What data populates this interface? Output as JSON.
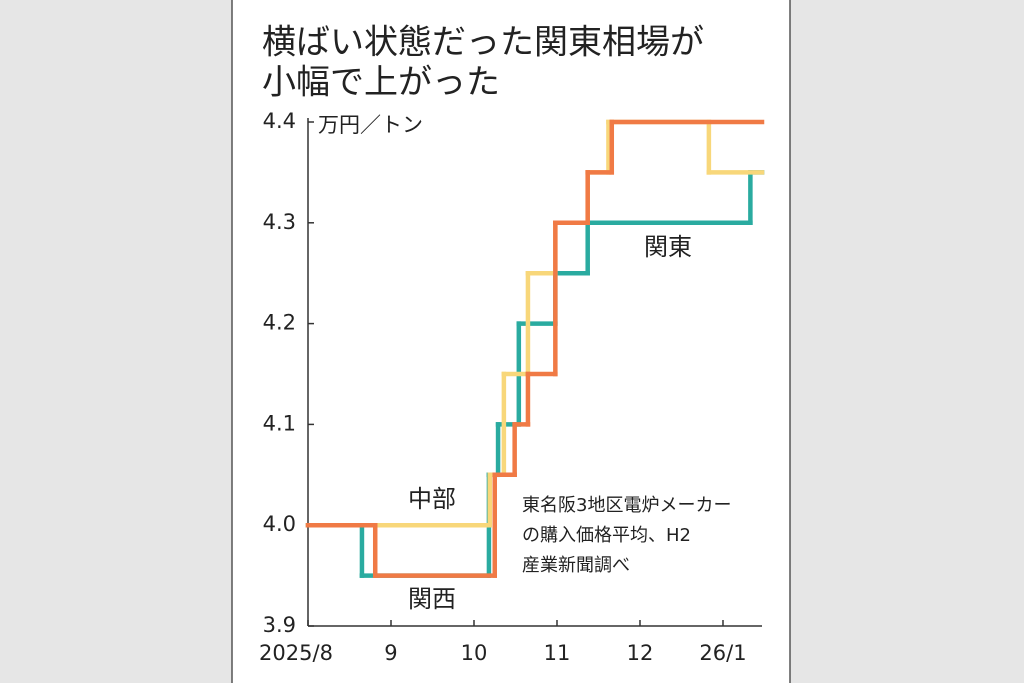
{
  "chart_data": {
    "type": "step",
    "title": [
      "横ばい状態だった関東相場が",
      "小幅で上がった"
    ],
    "y_label": "万円／トン",
    "note": [
      "東名阪3地区電炉メーカー",
      "の購入価格平均、H2",
      "産業新聞調べ"
    ],
    "xlim": [
      0,
      5.47
    ],
    "xticks": [
      {
        "value": 0,
        "label": "2025/8"
      },
      {
        "value": 1,
        "label": "9"
      },
      {
        "value": 2,
        "label": "10"
      },
      {
        "value": 3,
        "label": "11"
      },
      {
        "value": 4,
        "label": "12"
      },
      {
        "value": 5,
        "label": "26/1"
      }
    ],
    "ylim": [
      3.9,
      4.4
    ],
    "yticks": [
      3.9,
      {
        "value": 4,
        "label": "4.0"
      },
      4.1,
      4.2,
      4.3,
      4.4
    ],
    "series": [
      {
        "name": "関東",
        "color": "#2aaba0",
        "x": [
          0,
          0.65,
          2.18,
          2.29,
          2.54,
          2.98,
          3.37,
          5.33
        ],
        "values": [
          4,
          3.95,
          4.05,
          4.1,
          4.2,
          4.25,
          4.3,
          4.35
        ]
      },
      {
        "name": "中部",
        "color": "#f8d77a",
        "x": [
          0,
          2.19,
          2.36,
          2.65,
          2.98,
          3.37,
          3.62,
          4.83
        ],
        "values": [
          4,
          4.05,
          4.15,
          4.25,
          4.3,
          4.35,
          4.4,
          4.35
        ]
      },
      {
        "name": "関西",
        "color": "#f07a45",
        "x": [
          0,
          0.81,
          2.25,
          2.49,
          2.65,
          2.98,
          3.37,
          3.66
        ],
        "values": [
          4,
          3.95,
          4.05,
          4.1,
          4.15,
          4.3,
          4.35,
          4.4
        ]
      }
    ]
  }
}
